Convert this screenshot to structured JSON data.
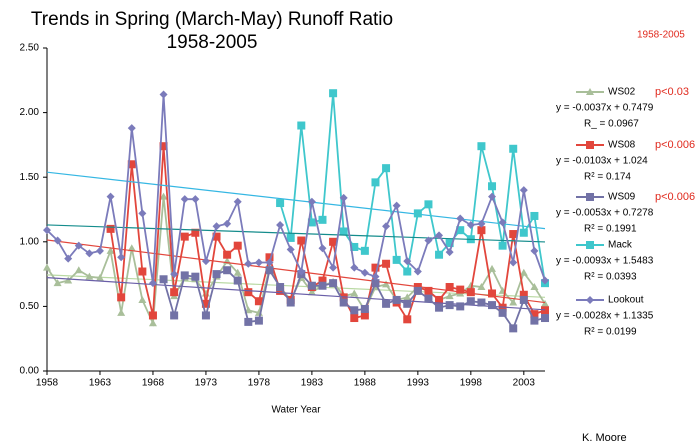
{
  "chart_data": {
    "type": "line",
    "title": "Trends in Spring (March-May) Runoff Ratio",
    "subtitle": "1958-2005",
    "corner_note": "1958-2005",
    "x_label": "Water Year",
    "author": "K. Moore",
    "x": [
      1958,
      1959,
      1960,
      1961,
      1962,
      1963,
      1964,
      1965,
      1966,
      1967,
      1968,
      1969,
      1970,
      1971,
      1972,
      1973,
      1974,
      1975,
      1976,
      1977,
      1978,
      1979,
      1980,
      1981,
      1982,
      1983,
      1984,
      1985,
      1986,
      1987,
      1988,
      1989,
      1990,
      1991,
      1992,
      1993,
      1994,
      1995,
      1996,
      1997,
      1998,
      1999,
      2000,
      2001,
      2002,
      2003,
      2004,
      2005
    ],
    "xlim": [
      1958,
      2005
    ],
    "xticks": [
      1958,
      1963,
      1968,
      1973,
      1978,
      1983,
      1988,
      1993,
      1998,
      2003
    ],
    "ylim": [
      0,
      2.5
    ],
    "yticks": [
      {
        "value": 0,
        "label": "0.00"
      },
      {
        "value": 0.5,
        "label": "0.50"
      },
      {
        "value": 1,
        "label": "1.00"
      },
      {
        "value": 1.5,
        "label": "1.50"
      },
      {
        "value": 2,
        "label": "2.00"
      },
      {
        "value": 2.5,
        "label": "2.50"
      }
    ],
    "series": [
      {
        "name": "WS02",
        "color": "#a9bf9a",
        "marker": "triangle",
        "trend_color": "#b9d9a3",
        "p_label": "p<0.03",
        "trend": {
          "slope": -0.0037,
          "intercept": 0.7479,
          "equation": "y = -0.0037x + 0.7479",
          "r2_label": "R_ = 0.0967"
        },
        "values": [
          0.8,
          0.68,
          0.7,
          0.78,
          0.73,
          0.72,
          0.93,
          0.45,
          0.95,
          0.55,
          0.37,
          1.35,
          0.58,
          0.72,
          0.71,
          0.6,
          0.73,
          0.85,
          0.76,
          0.47,
          0.45,
          0.8,
          0.65,
          0.55,
          0.72,
          0.61,
          0.66,
          0.69,
          0.58,
          0.6,
          0.47,
          0.65,
          0.67,
          0.55,
          0.57,
          0.65,
          0.62,
          0.55,
          0.58,
          0.6,
          0.66,
          0.65,
          0.79,
          0.62,
          0.53,
          0.76,
          0.65,
          0.52
        ]
      },
      {
        "name": "WS08",
        "color": "#e2463c",
        "marker": "square",
        "trend_color": "#e2463c",
        "p_label": "p<0.006",
        "trend": {
          "slope": -0.0103,
          "intercept": 1.024,
          "equation": "y = -0.0103x + 1.024",
          "r2_label": "R² = 0.174"
        },
        "values": [
          null,
          null,
          null,
          null,
          null,
          null,
          1.1,
          0.57,
          1.6,
          0.77,
          0.43,
          1.74,
          0.61,
          1.04,
          1.07,
          0.52,
          1.04,
          0.9,
          0.97,
          0.61,
          0.54,
          0.88,
          0.62,
          0.55,
          1.01,
          0.65,
          0.7,
          1.0,
          0.57,
          0.41,
          0.43,
          0.8,
          0.83,
          0.53,
          0.4,
          0.65,
          0.62,
          0.55,
          0.65,
          0.63,
          0.61,
          1.09,
          0.6,
          0.49,
          1.06,
          0.59,
          0.44,
          0.47
        ]
      },
      {
        "name": "WS09",
        "color": "#7272a6",
        "marker": "square",
        "trend_color": "#6a5fa8",
        "p_label": "p<0.006",
        "trend": {
          "slope": -0.0053,
          "intercept": 0.7278,
          "equation": "y = -0.0053x + 0.7278",
          "r2_label": "R² = 0.1991"
        },
        "values": [
          null,
          null,
          null,
          null,
          null,
          null,
          null,
          null,
          null,
          null,
          null,
          0.71,
          0.43,
          0.74,
          0.73,
          0.43,
          0.75,
          0.78,
          0.7,
          0.38,
          0.39,
          0.78,
          0.65,
          0.53,
          0.75,
          0.66,
          0.66,
          0.68,
          0.53,
          0.47,
          0.48,
          0.68,
          0.52,
          0.55,
          0.52,
          0.62,
          0.56,
          0.49,
          0.51,
          0.5,
          0.54,
          0.53,
          0.51,
          0.45,
          0.33,
          0.55,
          0.39,
          0.41
        ]
      },
      {
        "name": "Mack",
        "color": "#3fc7cc",
        "marker": "square",
        "trend_color": "#35b7e3",
        "trend": {
          "slope": -0.0093,
          "intercept": 1.5483,
          "equation": "y = -0.0093x + 1.5483",
          "r2_label": "R² = 0.0393"
        },
        "values": [
          null,
          null,
          null,
          null,
          null,
          null,
          null,
          null,
          null,
          null,
          null,
          null,
          null,
          null,
          null,
          null,
          null,
          null,
          null,
          null,
          null,
          null,
          1.3,
          1.03,
          1.9,
          1.15,
          1.17,
          2.15,
          1.08,
          0.96,
          0.93,
          1.46,
          1.57,
          0.86,
          0.77,
          1.22,
          1.29,
          0.9,
          0.99,
          1.09,
          1.02,
          1.74,
          1.43,
          0.97,
          1.72,
          1.07,
          1.2,
          0.68
        ]
      },
      {
        "name": "Lookout",
        "color": "#7b7bbb",
        "marker": "diamond",
        "trend_color": "#148c8c",
        "trend": {
          "slope": -0.0028,
          "intercept": 1.1335,
          "equation": "y = -0.0028x + 1.1335",
          "r2_label": "R² = 0.0199"
        },
        "values": [
          1.09,
          1.01,
          0.87,
          0.97,
          0.91,
          0.93,
          1.35,
          0.88,
          1.88,
          1.22,
          0.68,
          2.14,
          0.75,
          1.33,
          1.33,
          0.85,
          1.12,
          1.14,
          1.31,
          0.83,
          0.84,
          0.84,
          1.13,
          0.94,
          0.77,
          1.31,
          0.95,
          0.8,
          1.34,
          0.8,
          0.76,
          0.73,
          1.12,
          1.28,
          0.85,
          0.77,
          1.01,
          1.05,
          0.92,
          1.18,
          1.13,
          1.14,
          1.35,
          1.15,
          0.84,
          1.4,
          0.93,
          0.7
        ]
      }
    ]
  }
}
